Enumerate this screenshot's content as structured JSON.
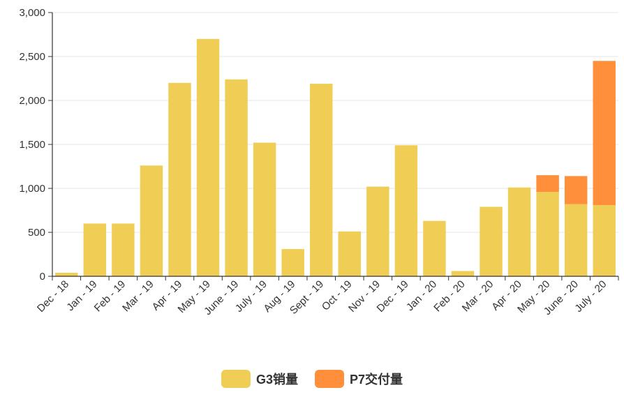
{
  "chart_data": {
    "type": "bar",
    "stacked": true,
    "categories": [
      "Dec - 18",
      "Jan - 19",
      "Feb - 19",
      "Mar - 19",
      "Apr - 19",
      "May - 19",
      "June - 19",
      "July - 19",
      "Aug - 19",
      "Sept - 19",
      "Oct - 19",
      "Nov - 19",
      "Dec - 19",
      "Jan - 20",
      "Feb - 20",
      "Mar - 20",
      "Apr - 20",
      "May - 20",
      "June - 20",
      "July - 20"
    ],
    "series": [
      {
        "name": "G3销量",
        "color": "#f0ce55",
        "values": [
          40,
          600,
          600,
          1260,
          2200,
          2700,
          2240,
          1520,
          310,
          2190,
          510,
          1020,
          1490,
          630,
          60,
          790,
          1010,
          960,
          820,
          810
        ]
      },
      {
        "name": "P7交付量",
        "color": "#ff8f3a",
        "values": [
          0,
          0,
          0,
          0,
          0,
          0,
          0,
          0,
          0,
          0,
          0,
          0,
          0,
          0,
          0,
          0,
          0,
          190,
          320,
          1640
        ]
      }
    ],
    "title": "",
    "xlabel": "",
    "ylabel": "",
    "ylim": [
      0,
      3000
    ],
    "yticks": [
      "0",
      "500",
      "1,000",
      "1,500",
      "2,000",
      "2,500",
      "3,000"
    ],
    "grid": true,
    "legend_position": "bottom"
  }
}
